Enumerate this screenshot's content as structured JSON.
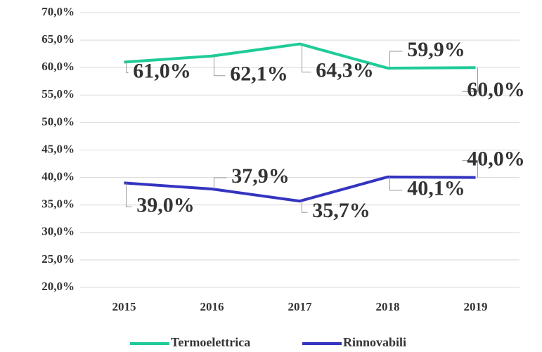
{
  "chart_data": {
    "type": "line",
    "categories": [
      "2015",
      "2016",
      "2017",
      "2018",
      "2019"
    ],
    "series": [
      {
        "name": "Termoelettrica",
        "color": "#1fcb98",
        "values": [
          61.0,
          62.1,
          64.3,
          59.9,
          60.0
        ],
        "value_labels": [
          "61,0%",
          "62,1%",
          "64,3%",
          "59,9%",
          "60,0%"
        ]
      },
      {
        "name": "Rinnovabili",
        "color": "#3434c0",
        "values": [
          39.0,
          37.9,
          35.7,
          40.1,
          40.0
        ],
        "value_labels": [
          "39,0%",
          "37,9%",
          "35,7%",
          "40,1%",
          "40,0%"
        ]
      }
    ],
    "ylim": [
      20,
      70
    ],
    "yticks": [
      {
        "value": 20,
        "label": "20,0%"
      },
      {
        "value": 25,
        "label": "25,0%"
      },
      {
        "value": 30,
        "label": "30,0%"
      },
      {
        "value": 35,
        "label": "35,0%"
      },
      {
        "value": 40,
        "label": "40,0%"
      },
      {
        "value": 45,
        "label": "45,0%"
      },
      {
        "value": 50,
        "label": "50,0%"
      },
      {
        "value": 55,
        "label": "55,0%"
      },
      {
        "value": 60,
        "label": "60,0%"
      },
      {
        "value": 65,
        "label": "65,0%"
      },
      {
        "value": 70,
        "label": "70,0%"
      }
    ],
    "grid": true,
    "legend": "bottom"
  }
}
